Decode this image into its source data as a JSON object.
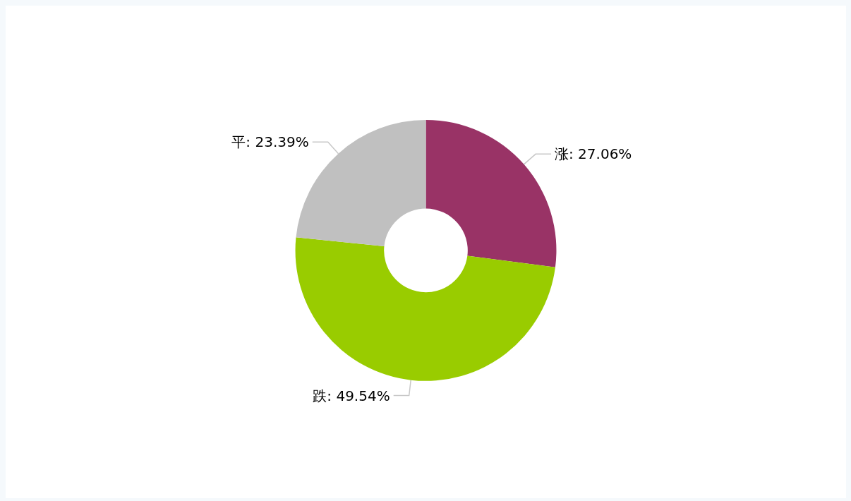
{
  "chart_data": {
    "type": "donut",
    "categories": [
      "涨",
      "跌",
      "平"
    ],
    "values": [
      27.06,
      49.54,
      23.39
    ],
    "colors": [
      "#993366",
      "#99cc00",
      "#c0c0c0"
    ],
    "value_labels": [
      "27.06%",
      "49.54%",
      "23.39%"
    ]
  }
}
